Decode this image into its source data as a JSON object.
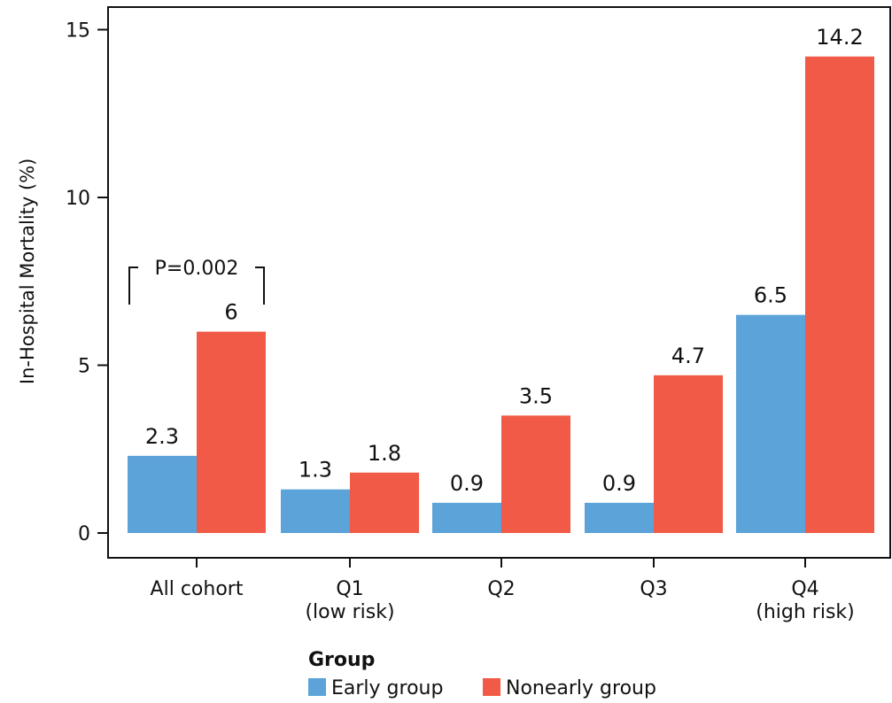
{
  "chart_data": {
    "type": "bar",
    "ylabel": "In-Hospital Mortality (%)",
    "xlabel": "",
    "ylim": [
      0,
      15.5
    ],
    "yticks": [
      0,
      5,
      10,
      15
    ],
    "grid": false,
    "categories": [
      [
        "All cohort"
      ],
      [
        "Q1",
        "(low risk)"
      ],
      [
        "Q2"
      ],
      [
        "Q3"
      ],
      [
        "Q4",
        "(high risk)"
      ]
    ],
    "series": [
      {
        "name": "Early group",
        "color": "#5ba3d9",
        "values": [
          2.3,
          1.3,
          0.9,
          0.9,
          6.5
        ]
      },
      {
        "name": "Nonearly group",
        "color": "#f05a46",
        "values": [
          6,
          1.8,
          3.5,
          4.7,
          14.2
        ]
      }
    ],
    "value_labels": [
      [
        "2.3",
        "1.3",
        "0.9",
        "0.9",
        "6.5"
      ],
      [
        "6",
        "1.8",
        "3.5",
        "4.7",
        "14.2"
      ]
    ],
    "legend": {
      "title": "Group",
      "position": "bottom"
    },
    "annotation": {
      "text": "P=0.002",
      "category_index": 0
    }
  }
}
